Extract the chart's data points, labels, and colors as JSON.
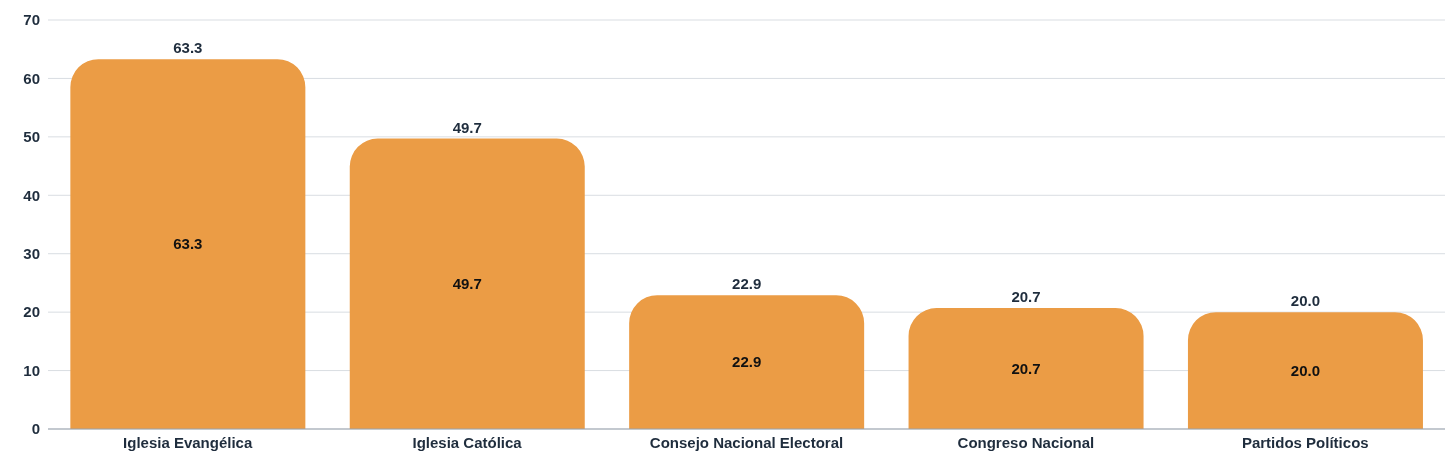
{
  "chart_data": {
    "type": "bar",
    "categories": [
      "Iglesia Evangélica",
      "Iglesia Católica",
      "Consejo Nacional Electoral",
      "Congreso Nacional",
      "Partidos Políticos"
    ],
    "values": [
      63.3,
      49.7,
      22.9,
      20.7,
      20.0
    ],
    "value_labels": [
      "63.3",
      "49.7",
      "22.9",
      "20.7",
      "20.0"
    ],
    "color": "#eb9c45",
    "ylim": [
      0,
      70
    ],
    "yticks": [
      0,
      10,
      20,
      30,
      40,
      50,
      60,
      70
    ],
    "grid": "y"
  }
}
